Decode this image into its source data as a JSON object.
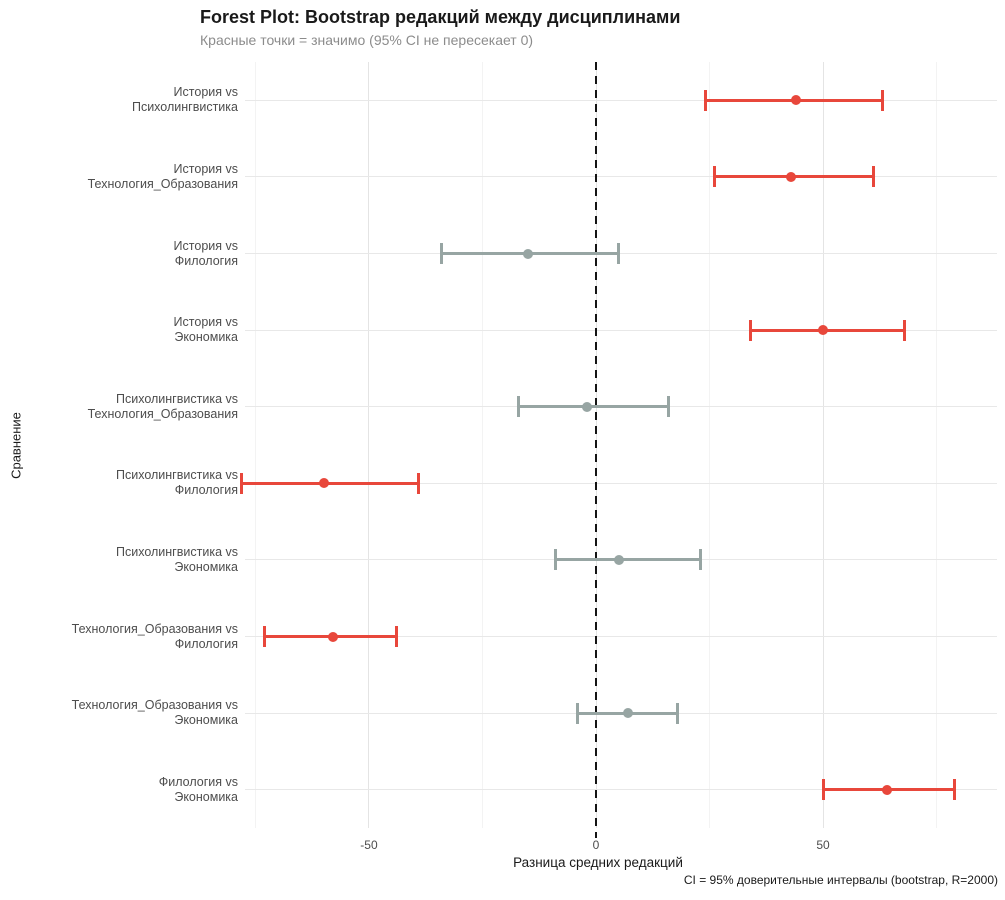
{
  "title": "Forest Plot: Bootstrap редакций между дисциплинами",
  "subtitle": "Красные точки = значимо (95% CI не пересекает 0)",
  "caption": "CI = 95% доверительные интервалы (bootstrap, R=2000)",
  "chart_data": {
    "type": "scatter",
    "subtype": "forest-plot-dot-with-ci",
    "xlabel": "Разница средних редакций",
    "ylabel": "Сравнение",
    "xlim": [
      -77.3,
      88.3
    ],
    "x_ticks": [
      -50,
      0,
      50
    ],
    "x_minor_gridlines": [
      -75,
      -25,
      25,
      75
    ],
    "zero_reference_line": 0,
    "grid": "on",
    "legend_position": "none",
    "colors": {
      "significant": "#e8473b",
      "not_significant": "#97a5a3",
      "grid_major": "#e4e4e4",
      "grid_minor": "#f3f3f3",
      "zero_line": "#141414"
    },
    "rows": [
      {
        "label_line1": "История vs",
        "label_line2": "Психолингвистика",
        "mean": 44,
        "ci_low": 24,
        "ci_high": 63,
        "significant": true
      },
      {
        "label_line1": "История vs",
        "label_line2": "Технология_Образования",
        "mean": 43,
        "ci_low": 26,
        "ci_high": 61,
        "significant": true
      },
      {
        "label_line1": "История vs",
        "label_line2": "Филология",
        "mean": -15,
        "ci_low": -34,
        "ci_high": 5,
        "significant": false
      },
      {
        "label_line1": "История vs",
        "label_line2": "Экономика",
        "mean": 50,
        "ci_low": 34,
        "ci_high": 68,
        "significant": true
      },
      {
        "label_line1": "Психолингвистика vs",
        "label_line2": "Технология_Образования",
        "mean": -2,
        "ci_low": -17,
        "ci_high": 16,
        "significant": false
      },
      {
        "label_line1": "Психолингвистика vs",
        "label_line2": "Филология",
        "mean": -60,
        "ci_low": -78,
        "ci_high": -39,
        "significant": true
      },
      {
        "label_line1": "Психолингвистика vs",
        "label_line2": "Экономика",
        "mean": 5,
        "ci_low": -9,
        "ci_high": 23,
        "significant": false
      },
      {
        "label_line1": "Технология_Образования vs",
        "label_line2": "Филология",
        "mean": -58,
        "ci_low": -73,
        "ci_high": -44,
        "significant": true
      },
      {
        "label_line1": "Технология_Образования vs",
        "label_line2": "Экономика",
        "mean": 7,
        "ci_low": -4,
        "ci_high": 18,
        "significant": false
      },
      {
        "label_line1": "Филология vs",
        "label_line2": "Экономика",
        "mean": 64,
        "ci_low": 50,
        "ci_high": 79,
        "significant": true
      }
    ]
  }
}
